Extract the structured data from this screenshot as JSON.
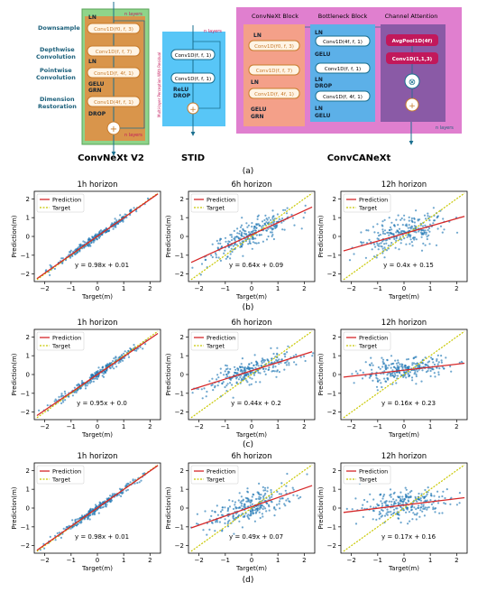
{
  "caption_a": "(a)",
  "diagrams": {
    "convnext": {
      "title": "ConvNeXt V2",
      "n_label": "n layers",
      "side_labels": [
        "Downsample",
        "Depthwise Convolution",
        "Pointwise Convolution",
        "Dimension Restoration"
      ],
      "boxes": [
        "Conv1D(f0, f, 3)",
        "Conv1D(f, f, 7)",
        "Conv1D(f, 4f, 1)",
        "Conv1D(4f, f, 1)"
      ],
      "texts": [
        "LN",
        "LN",
        "GELU",
        "GRN",
        "DROP"
      ]
    },
    "stid": {
      "title": "STID",
      "n_label": "n layers",
      "vertical_label": "Multi-layer Perception With Residual",
      "boxes": [
        "Conv1D(f, f, 1)",
        "Conv1D(f, f, 1)"
      ],
      "texts": [
        "ReLU",
        "DROP"
      ]
    },
    "convcanext": {
      "title": "ConvCANeXt",
      "n_label": "n layers",
      "block_titles": [
        "ConvNeXt Block",
        "Bottleneck Block",
        "Channel Attention"
      ],
      "convnext_boxes": [
        "Conv1D(f0, f, 3)",
        "Conv1D(f, f, 7)",
        "Conv1D(f, 4f, 1)"
      ],
      "convnext_texts": [
        "LN",
        "LN",
        "GELU",
        "GRN"
      ],
      "bottleneck_boxes": [
        "Conv1D(4f, f, 1)",
        "Conv1D(f, f, 1)",
        "Conv1D(f, 4f, 1)"
      ],
      "bottleneck_texts": [
        "LN",
        "GELU",
        "LN",
        "DROP",
        "LN",
        "GELU"
      ],
      "attention_boxes": [
        "AvgPool1D(4f)",
        "Conv1D(1,1,3)"
      ]
    }
  },
  "legend": {
    "prediction": "Prediction",
    "target": "Target"
  },
  "axis": {
    "xlabel": "Target(m)",
    "ylabel": "Prediction(m)"
  },
  "colors": {
    "scatter": "#1f77b4",
    "prediction": "#d62728",
    "target": "#c8c800"
  },
  "chart_data": [
    {
      "type": "scatter",
      "title": "1h horizon",
      "equation": "y = 0.98x + 0.01",
      "slope": 0.98,
      "intercept": 0.01,
      "spread": 0.1,
      "group": "(b)",
      "xlim": [
        -2.4,
        2.4
      ],
      "ylim": [
        -2.4,
        2.4
      ],
      "xticks": [
        -2,
        -1,
        0,
        1,
        2
      ],
      "yticks": [
        -2,
        -1,
        0,
        1,
        2
      ]
    },
    {
      "type": "scatter",
      "title": "6h horizon",
      "equation": "y = 0.64x + 0.09",
      "slope": 0.64,
      "intercept": 0.09,
      "spread": 0.35,
      "group": "(b)",
      "xlim": [
        -2.4,
        2.4
      ],
      "ylim": [
        -2.4,
        2.4
      ],
      "xticks": [
        -2,
        -1,
        0,
        1,
        2
      ],
      "yticks": [
        -2,
        -1,
        0,
        1,
        2
      ]
    },
    {
      "type": "scatter",
      "title": "12h horizon",
      "equation": "y = 0.4x + 0.15",
      "slope": 0.4,
      "intercept": 0.15,
      "spread": 0.45,
      "group": "(b)",
      "xlim": [
        -2.4,
        2.4
      ],
      "ylim": [
        -2.4,
        2.4
      ],
      "xticks": [
        -2,
        -1,
        0,
        1,
        2
      ],
      "yticks": [
        -2,
        -1,
        0,
        1,
        2
      ]
    },
    {
      "type": "scatter",
      "title": "1h horizon",
      "equation": "y = 0.95x + 0.0",
      "slope": 0.95,
      "intercept": 0.0,
      "spread": 0.12,
      "group": "(c)",
      "xlim": [
        -2.4,
        2.4
      ],
      "ylim": [
        -2.4,
        2.4
      ],
      "xticks": [
        -2,
        -1,
        0,
        1,
        2
      ],
      "yticks": [
        -2,
        -1,
        0,
        1,
        2
      ]
    },
    {
      "type": "scatter",
      "title": "6h horizon",
      "equation": "y = 0.44x + 0.2",
      "slope": 0.44,
      "intercept": 0.2,
      "spread": 0.3,
      "group": "(c)",
      "xlim": [
        -2.4,
        2.4
      ],
      "ylim": [
        -2.4,
        2.4
      ],
      "xticks": [
        -2,
        -1,
        0,
        1,
        2
      ],
      "yticks": [
        -2,
        -1,
        0,
        1,
        2
      ]
    },
    {
      "type": "scatter",
      "title": "12h horizon",
      "equation": "y = 0.16x + 0.23",
      "slope": 0.16,
      "intercept": 0.23,
      "spread": 0.3,
      "group": "(c)",
      "xlim": [
        -2.4,
        2.4
      ],
      "ylim": [
        -2.4,
        2.4
      ],
      "xticks": [
        -2,
        -1,
        0,
        1,
        2
      ],
      "yticks": [
        -2,
        -1,
        0,
        1,
        2
      ]
    },
    {
      "type": "scatter",
      "title": "1h horizon",
      "equation": "y = 0.98x + 0.01",
      "slope": 0.98,
      "intercept": 0.01,
      "spread": 0.1,
      "group": "(d)",
      "xlim": [
        -2.4,
        2.4
      ],
      "ylim": [
        -2.4,
        2.4
      ],
      "xticks": [
        -2,
        -1,
        0,
        1,
        2
      ],
      "yticks": [
        -2,
        -1,
        0,
        1,
        2
      ]
    },
    {
      "type": "scatter",
      "title": "6h horizon",
      "equation": "y = 0.49x + 0.07",
      "slope": 0.49,
      "intercept": 0.07,
      "spread": 0.4,
      "group": "(d)",
      "xlim": [
        -2.4,
        2.4
      ],
      "ylim": [
        -2.4,
        2.4
      ],
      "xticks": [
        -2,
        -1,
        0,
        1,
        2
      ],
      "yticks": [
        -2,
        -1,
        0,
        1,
        2
      ]
    },
    {
      "type": "scatter",
      "title": "12h horizon",
      "equation": "y = 0.17x + 0.16",
      "slope": 0.17,
      "intercept": 0.16,
      "spread": 0.4,
      "group": "(d)",
      "xlim": [
        -2.4,
        2.4
      ],
      "ylim": [
        -2.4,
        2.4
      ],
      "xticks": [
        -2,
        -1,
        0,
        1,
        2
      ],
      "yticks": [
        -2,
        -1,
        0,
        1,
        2
      ]
    }
  ]
}
